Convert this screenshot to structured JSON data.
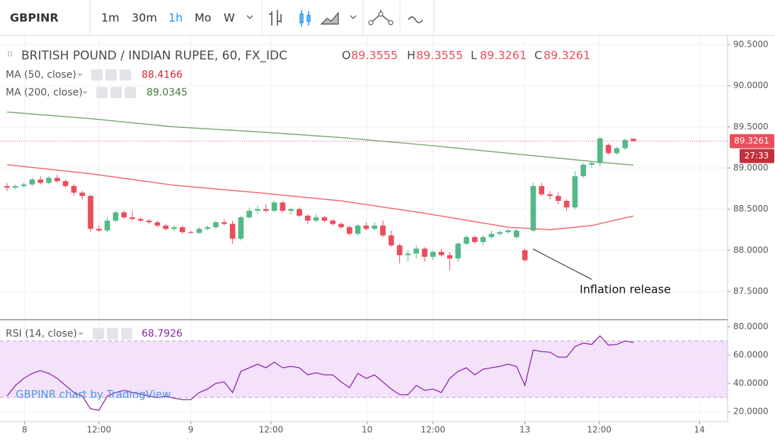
{
  "toolbar": {
    "symbol": "GBPINR",
    "intervals": [
      "1m",
      "30m",
      "1h",
      "Mo",
      "W"
    ],
    "active_index": 2
  },
  "chart_data": [
    {
      "type": "candlestick",
      "title": "BRITISH POUND / INDIAN RUPEE, 60, FX_IDC",
      "ohlc_labels": [
        "O",
        "H",
        "L",
        "C"
      ],
      "up_color": "#53b987",
      "down_color": "#eb4d5c",
      "x": [
        0,
        1,
        2,
        3,
        4,
        5,
        6,
        7,
        8,
        9,
        10,
        11,
        12,
        13,
        14,
        15,
        16,
        17,
        18,
        19,
        20,
        21,
        22,
        23,
        24,
        25,
        26,
        27,
        28,
        29,
        30,
        31,
        32,
        33,
        34,
        35,
        36,
        37,
        38,
        39,
        40,
        41,
        42,
        43,
        44,
        45,
        46,
        47,
        48,
        49,
        50,
        51,
        52,
        53,
        54,
        55,
        56,
        57,
        58,
        59,
        60,
        61,
        62,
        63,
        64,
        65,
        66,
        67,
        68,
        69,
        70,
        71,
        72,
        73,
        74,
        75
      ],
      "candles": [
        [
          88.78,
          88.82,
          88.72,
          88.76
        ],
        [
          88.76,
          88.8,
          88.74,
          88.78
        ],
        [
          88.78,
          88.82,
          88.76,
          88.8
        ],
        [
          88.8,
          88.88,
          88.78,
          88.86
        ],
        [
          88.86,
          88.9,
          88.8,
          88.82
        ],
        [
          88.82,
          88.9,
          88.8,
          88.88
        ],
        [
          88.88,
          88.92,
          88.82,
          88.84
        ],
        [
          88.84,
          88.86,
          88.76,
          88.78
        ],
        [
          88.78,
          88.8,
          88.66,
          88.7
        ],
        [
          88.7,
          88.72,
          88.62,
          88.66
        ],
        [
          88.66,
          88.68,
          88.22,
          88.26
        ],
        [
          88.26,
          88.3,
          88.22,
          88.24
        ],
        [
          88.24,
          88.4,
          88.22,
          88.36
        ],
        [
          88.36,
          88.48,
          88.34,
          88.46
        ],
        [
          88.46,
          88.48,
          88.38,
          88.4
        ],
        [
          88.4,
          88.48,
          88.36,
          88.38
        ],
        [
          88.38,
          88.4,
          88.34,
          88.36
        ],
        [
          88.36,
          88.38,
          88.32,
          88.34
        ],
        [
          88.34,
          88.36,
          88.28,
          88.3
        ],
        [
          88.3,
          88.32,
          88.24,
          88.26
        ],
        [
          88.26,
          88.3,
          88.24,
          88.28
        ],
        [
          88.28,
          88.3,
          88.2,
          88.22
        ],
        [
          88.22,
          88.24,
          88.2,
          88.21
        ],
        [
          88.21,
          88.28,
          88.2,
          88.26
        ],
        [
          88.26,
          88.3,
          88.24,
          88.28
        ],
        [
          88.28,
          88.36,
          88.26,
          88.34
        ],
        [
          88.34,
          88.38,
          88.3,
          88.32
        ],
        [
          88.32,
          88.36,
          88.08,
          88.14
        ],
        [
          88.14,
          88.42,
          88.12,
          88.4
        ],
        [
          88.4,
          88.52,
          88.38,
          88.48
        ],
        [
          88.48,
          88.54,
          88.44,
          88.5
        ],
        [
          88.5,
          88.56,
          88.46,
          88.48
        ],
        [
          88.48,
          88.6,
          88.46,
          88.58
        ],
        [
          88.58,
          88.6,
          88.46,
          88.48
        ],
        [
          88.48,
          88.52,
          88.44,
          88.5
        ],
        [
          88.5,
          88.52,
          88.4,
          88.42
        ],
        [
          88.42,
          88.44,
          88.32,
          88.36
        ],
        [
          88.36,
          88.44,
          88.34,
          88.4
        ],
        [
          88.4,
          88.42,
          88.34,
          88.36
        ],
        [
          88.36,
          88.38,
          88.3,
          88.32
        ],
        [
          88.32,
          88.34,
          88.26,
          88.28
        ],
        [
          88.28,
          88.3,
          88.18,
          88.2
        ],
        [
          88.2,
          88.32,
          88.18,
          88.3
        ],
        [
          88.3,
          88.34,
          88.24,
          88.26
        ],
        [
          88.26,
          88.34,
          88.24,
          88.3
        ],
        [
          88.3,
          88.36,
          88.16,
          88.18
        ],
        [
          88.18,
          88.24,
          88.04,
          88.06
        ],
        [
          88.06,
          88.08,
          87.84,
          87.94
        ],
        [
          87.94,
          88.0,
          87.86,
          87.96
        ],
        [
          87.96,
          88.06,
          87.9,
          88.02
        ],
        [
          88.02,
          88.04,
          87.86,
          87.92
        ],
        [
          87.92,
          88.0,
          87.88,
          87.98
        ],
        [
          87.98,
          88.02,
          87.92,
          87.94
        ],
        [
          87.94,
          87.98,
          87.76,
          87.9
        ],
        [
          87.9,
          88.1,
          87.86,
          88.08
        ],
        [
          88.08,
          88.18,
          88.06,
          88.16
        ],
        [
          88.16,
          88.18,
          88.08,
          88.1
        ],
        [
          88.1,
          88.18,
          88.06,
          88.16
        ],
        [
          88.16,
          88.24,
          88.14,
          88.2
        ],
        [
          88.2,
          88.24,
          88.18,
          88.22
        ],
        [
          88.22,
          88.26,
          88.2,
          88.24
        ],
        [
          88.16,
          88.26,
          88.14,
          88.24
        ],
        [
          88.0,
          88.02,
          87.86,
          87.88
        ],
        [
          88.24,
          88.82,
          88.22,
          88.78
        ],
        [
          88.78,
          88.82,
          88.66,
          88.68
        ],
        [
          88.68,
          88.72,
          88.62,
          88.66
        ],
        [
          88.66,
          88.7,
          88.56,
          88.6
        ],
        [
          88.6,
          88.62,
          88.48,
          88.52
        ],
        [
          88.52,
          88.96,
          88.5,
          88.9
        ],
        [
          88.9,
          89.06,
          88.88,
          89.04
        ],
        [
          89.04,
          89.08,
          89.0,
          89.06
        ],
        [
          89.06,
          89.38,
          89.02,
          89.36
        ],
        [
          89.28,
          89.3,
          89.16,
          89.18
        ],
        [
          89.18,
          89.26,
          89.16,
          89.24
        ],
        [
          89.24,
          89.36,
          89.22,
          89.34
        ],
        [
          89.3555,
          89.3555,
          89.3261,
          89.3261
        ]
      ],
      "series": [
        {
          "name": "MA (50, close)",
          "color": "#f0696c",
          "x": [
            0,
            10,
            20,
            30,
            40,
            50,
            60,
            65,
            70,
            75
          ],
          "values": [
            89.04,
            88.93,
            88.79,
            88.7,
            88.6,
            88.45,
            88.28,
            88.25,
            88.3,
            88.4166
          ]
        },
        {
          "name": "MA (200, close)",
          "color": "#7fa878",
          "x": [
            0,
            10,
            20,
            30,
            40,
            50,
            60,
            70,
            75
          ],
          "values": [
            89.68,
            89.6,
            89.5,
            89.44,
            89.37,
            89.28,
            89.18,
            89.08,
            89.0345
          ]
        }
      ],
      "countdown": "27:33",
      "annotation": "Inflation release",
      "xlim": [
        -0.847,
        86.27
      ],
      "xticks": [
        {
          "value": 2.1,
          "label": "8"
        },
        {
          "value": 11.0,
          "label": "12:00"
        },
        {
          "value": 22.0,
          "label": "9"
        },
        {
          "value": 31.6,
          "label": "12:00"
        },
        {
          "value": 43.1,
          "label": "10"
        },
        {
          "value": 51.0,
          "label": "12:00"
        },
        {
          "value": 62.0,
          "label": "13"
        },
        {
          "value": 70.9,
          "label": "12:00"
        },
        {
          "value": 82.9,
          "label": "14"
        }
      ],
      "ylim": [
        87.156,
        90.612
      ],
      "yticks": [
        {
          "value": 87.5,
          "label": "87.5000"
        },
        {
          "value": 88,
          "label": "88.0000"
        },
        {
          "value": 88.5,
          "label": "88.5000"
        },
        {
          "value": 89,
          "label": "89.0000"
        },
        {
          "value": 89.5,
          "label": "89.5000"
        },
        {
          "value": 90,
          "label": "90.0000"
        },
        {
          "value": 90.5,
          "label": "90.5000"
        }
      ],
      "grid": true
    },
    {
      "type": "line",
      "watermark": "GBPINR chart by TradingView",
      "x": [
        0,
        1,
        2,
        3,
        4,
        5,
        6,
        7,
        8,
        9,
        10,
        11,
        12,
        13,
        14,
        15,
        16,
        17,
        18,
        19,
        20,
        21,
        22,
        23,
        24,
        25,
        26,
        27,
        28,
        29,
        30,
        31,
        32,
        33,
        34,
        35,
        36,
        37,
        38,
        39,
        40,
        41,
        42,
        43,
        44,
        45,
        46,
        47,
        48,
        49,
        50,
        51,
        52,
        53,
        54,
        55,
        56,
        57,
        58,
        59,
        60,
        61,
        62,
        63,
        64,
        65,
        66,
        67,
        68,
        69,
        70,
        71,
        72,
        73,
        74,
        75
      ],
      "series": [
        {
          "name": "RSI (14, close)",
          "color": "#8e24aa",
          "values": [
            31,
            38.5,
            43.5,
            47,
            49,
            47,
            43.5,
            38.5,
            33.5,
            31,
            22,
            21,
            31,
            33.5,
            35,
            33.5,
            32.5,
            31,
            30,
            31,
            29.5,
            28.5,
            28.5,
            33.5,
            36,
            40,
            41,
            33.5,
            48.5,
            51,
            53.5,
            51,
            55,
            51,
            52,
            51,
            46,
            47.5,
            46,
            46,
            41,
            37,
            47,
            43.5,
            46,
            41,
            36,
            32,
            32,
            38.5,
            35,
            36,
            33.5,
            43.5,
            48.5,
            51,
            46,
            50,
            51,
            52,
            53.5,
            52,
            38.5,
            63.5,
            62.5,
            62,
            58.5,
            58.5,
            66,
            68.5,
            67.5,
            73.5,
            67,
            67.5,
            70,
            68.7926
          ]
        }
      ],
      "band": [
        30,
        70
      ],
      "band_color": "#f3e2fa",
      "xlim": [
        -0.847,
        86.27
      ],
      "ylim": [
        13,
        85
      ],
      "yticks": [
        {
          "value": 20,
          "label": "20.0000"
        },
        {
          "value": 40,
          "label": "40.0000"
        },
        {
          "value": 60,
          "label": "60.0000"
        },
        {
          "value": 80,
          "label": "80.0000"
        }
      ],
      "grid": true
    }
  ]
}
